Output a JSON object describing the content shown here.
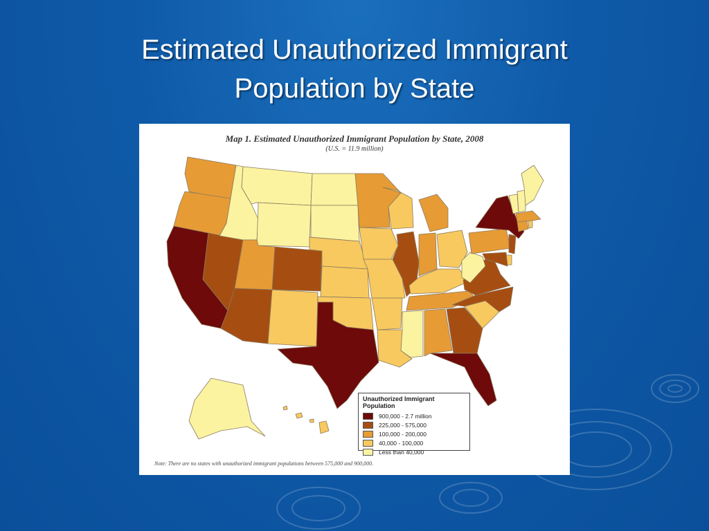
{
  "slide": {
    "title_line1": "Estimated Unauthorized Immigrant",
    "title_line2": "Population by State"
  },
  "map": {
    "title": "Map 1. Estimated Unauthorized Immigrant Population by State, 2008",
    "subtitle": "(U.S. = 11.9 million)",
    "legend_title": "Unauthorized Immigrant Population",
    "categories": [
      {
        "label": "900,000 - 2.7 million",
        "color": "#6e0a0a"
      },
      {
        "label": "225,000 - 575,000",
        "color": "#a64e12"
      },
      {
        "label": "100,000 - 200,000",
        "color": "#e79b35"
      },
      {
        "label": "40,000 - 100,000",
        "color": "#f8c95f"
      },
      {
        "label": "Less than 40,000",
        "color": "#fbf3a0"
      }
    ],
    "note": "Note: There are no states with unauthorized immigrant populations between 575,000 and 900,000."
  },
  "chart_data": {
    "type": "choropleth",
    "title": "Map 1. Estimated Unauthorized Immigrant Population by State, 2008",
    "regions": {
      "California": "900,000 - 2.7 million",
      "Texas": "900,000 - 2.7 million",
      "Florida": "900,000 - 2.7 million",
      "New York": "900,000 - 2.7 million",
      "Nevada": "225,000 - 575,000",
      "Arizona": "225,000 - 575,000",
      "Colorado": "225,000 - 575,000",
      "Illinois": "225,000 - 575,000",
      "Georgia": "225,000 - 575,000",
      "North Carolina": "225,000 - 575,000",
      "Virginia": "225,000 - 575,000",
      "New Jersey": "225,000 - 575,000",
      "Maryland": "225,000 - 575,000",
      "Washington": "100,000 - 200,000",
      "Oregon": "100,000 - 200,000",
      "Utah": "100,000 - 200,000",
      "Minnesota": "100,000 - 200,000",
      "Michigan": "100,000 - 200,000",
      "Indiana": "100,000 - 200,000",
      "Pennsylvania": "100,000 - 200,000",
      "Massachusetts": "100,000 - 200,000",
      "Connecticut": "100,000 - 200,000",
      "Alabama": "100,000 - 200,000",
      "Tennessee": "100,000 - 200,000",
      "New Mexico": "40,000 - 100,000",
      "Nebraska": "40,000 - 100,000",
      "Kansas": "40,000 - 100,000",
      "Oklahoma": "40,000 - 100,000",
      "Iowa": "40,000 - 100,000",
      "Missouri": "40,000 - 100,000",
      "Arkansas": "40,000 - 100,000",
      "Louisiana": "40,000 - 100,000",
      "Wisconsin": "40,000 - 100,000",
      "Ohio": "40,000 - 100,000",
      "Kentucky": "40,000 - 100,000",
      "South Carolina": "40,000 - 100,000",
      "Delaware": "40,000 - 100,000",
      "Rhode Island": "40,000 - 100,000",
      "Hawaii": "40,000 - 100,000",
      "Idaho": "Less than 40,000",
      "Montana": "Less than 40,000",
      "Wyoming": "Less than 40,000",
      "North Dakota": "Less than 40,000",
      "South Dakota": "Less than 40,000",
      "Mississippi": "Less than 40,000",
      "West Virginia": "Less than 40,000",
      "Maine": "Less than 40,000",
      "Vermont": "Less than 40,000",
      "New Hampshire": "Less than 40,000",
      "Alaska": "Less than 40,000"
    }
  }
}
